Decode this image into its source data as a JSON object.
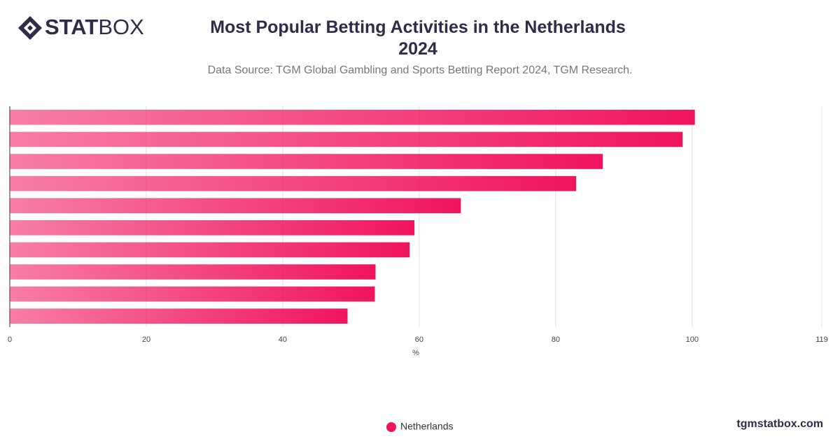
{
  "brand": {
    "bold": "STAT",
    "light": "BOX"
  },
  "footer": "tgmstatbox.com",
  "chart_data": {
    "type": "bar",
    "orientation": "horizontal",
    "title": "Most Popular Betting Activities in the Netherlands 2024",
    "subtitle": "Data Source: TGM Global Gambling and Sports Betting Report 2024, TGM Research.",
    "x_label": "%",
    "categories": [
      null,
      null,
      null,
      null,
      null,
      null,
      null,
      null,
      null,
      null
    ],
    "series": [
      {
        "name": "Netherlands",
        "color": "#f0145f",
        "values": [
          100.4,
          98.6,
          86.9,
          83.0,
          66.1,
          59.3,
          58.6,
          53.6,
          53.5,
          49.5
        ]
      }
    ],
    "xlim": [
      0,
      119
    ],
    "xticks": [
      0,
      20,
      40,
      60,
      80,
      100,
      119
    ],
    "grid": true
  }
}
